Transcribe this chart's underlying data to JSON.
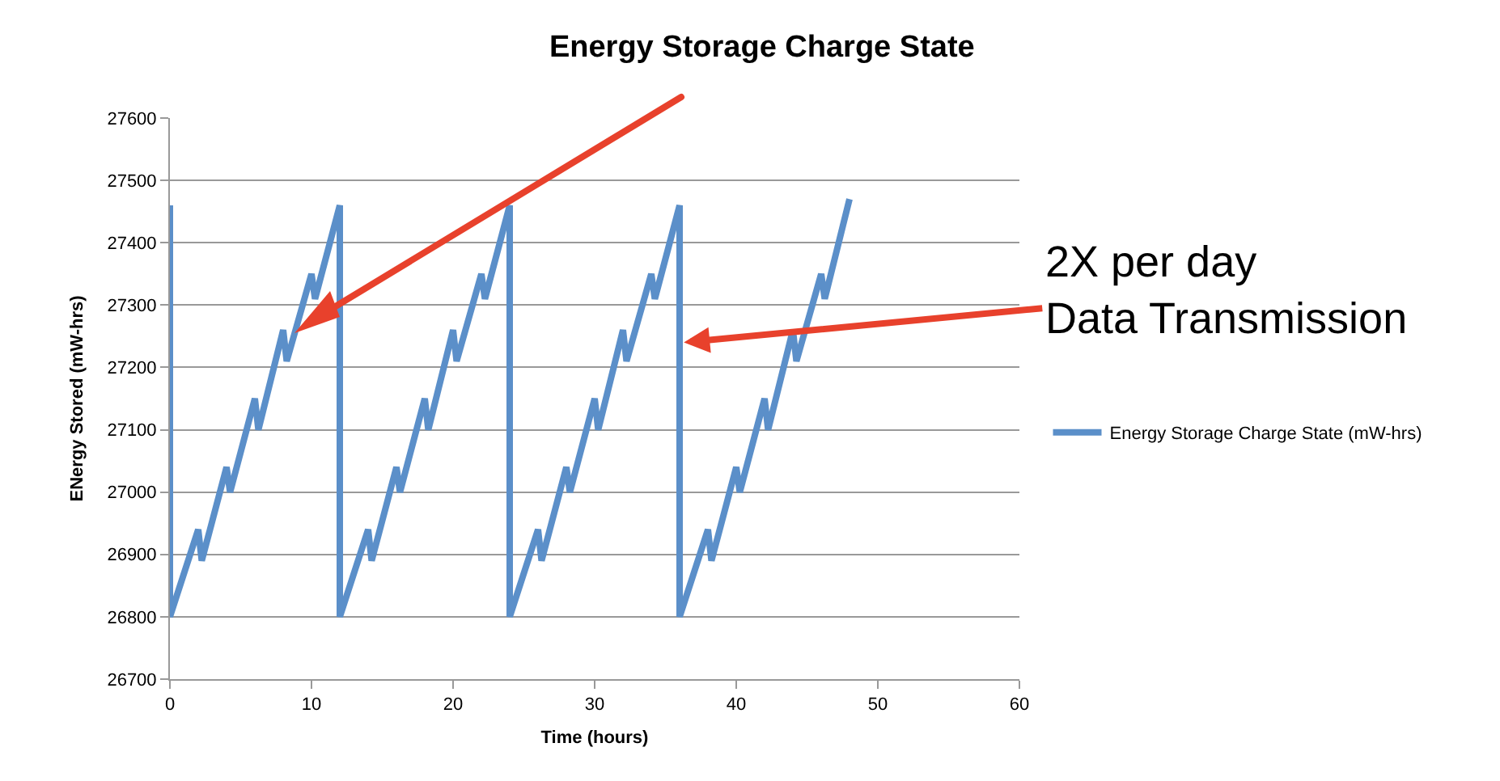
{
  "chart_data": {
    "type": "line",
    "title": "Energy Storage Charge State",
    "xlabel": "Time (hours)",
    "ylabel": "ENergy Stored (mW-hrs)",
    "x": [
      0,
      0,
      2,
      2.25,
      4,
      4.25,
      6,
      6.25,
      8,
      8.25,
      10,
      10.25,
      12,
      12,
      14,
      14.25,
      16,
      16.25,
      18,
      18.25,
      20,
      20.25,
      22,
      22.25,
      24,
      24,
      26,
      26.25,
      28,
      28.25,
      30,
      30.25,
      32,
      32.25,
      34,
      34.25,
      36,
      36,
      38,
      38.25,
      40,
      40.25,
      42,
      42.25,
      44,
      44.25,
      46,
      46.25,
      48
    ],
    "series": [
      {
        "name": "Energy Storage Charge State (mW-hrs)",
        "color": "#5b8fc9",
        "values": [
          27460,
          26800,
          26940,
          26890,
          27040,
          27000,
          27150,
          27100,
          27260,
          27210,
          27350,
          27310,
          27460,
          26800,
          26940,
          26890,
          27040,
          27000,
          27150,
          27100,
          27260,
          27210,
          27350,
          27310,
          27460,
          26800,
          26940,
          26890,
          27040,
          27000,
          27150,
          27100,
          27260,
          27210,
          27350,
          27310,
          27460,
          26800,
          26940,
          26890,
          27040,
          27000,
          27150,
          27100,
          27260,
          27210,
          27350,
          27310,
          27470
        ]
      }
    ],
    "xlim": [
      0,
      60
    ],
    "xticks": [
      0,
      10,
      20,
      30,
      40,
      50,
      60
    ],
    "ylim": [
      26700,
      27600
    ],
    "yticks": [
      26700,
      26800,
      26900,
      27000,
      27100,
      27200,
      27300,
      27400,
      27500,
      27600
    ],
    "grid": "y",
    "legend": "right",
    "marker": "none",
    "line_style": "solid",
    "annotations": [
      {
        "text": "2X per day\nData Transmission",
        "x": 36.3,
        "y": 27240
      }
    ]
  }
}
